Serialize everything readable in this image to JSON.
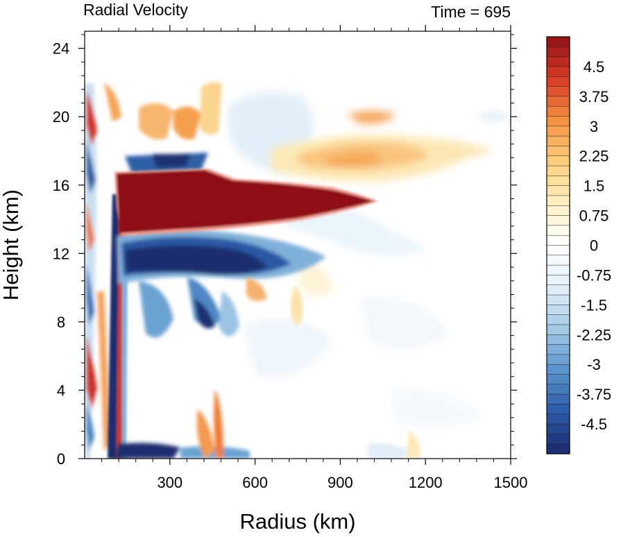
{
  "chart_data": {
    "type": "heatmap",
    "title_left": "Radial Velocity",
    "title_right": "Time = 695",
    "xlabel": "Radius (km)",
    "ylabel": "Height (km)",
    "xlim": [
      0,
      1500
    ],
    "ylim": [
      0,
      25
    ],
    "x_ticks": [
      300,
      600,
      900,
      1200,
      1500
    ],
    "y_ticks": [
      0,
      4,
      8,
      12,
      16,
      20,
      24
    ],
    "colorbar": {
      "range": [
        -5.25,
        5.25
      ],
      "step": 0.25,
      "tick_labels": [
        "4.5",
        "3.75",
        "3",
        "2.25",
        "1.5",
        "0.75",
        "0",
        "-0.75",
        "-1.5",
        "-2.25",
        "-3",
        "-3.75",
        "-4.5"
      ],
      "tick_values": [
        4.5,
        3.75,
        3,
        2.25,
        1.5,
        0.75,
        0,
        -0.75,
        -1.5,
        -2.25,
        -3,
        -3.75,
        -4.5
      ],
      "color_stops": [
        "#1b2a6b",
        "#2a5aa8",
        "#5a94cc",
        "#a3cbe6",
        "#e4f0f8",
        "#ffffff",
        "#fdf1c4",
        "#fbcf7d",
        "#f49240",
        "#d93a26",
        "#8e1116"
      ]
    },
    "features": [
      {
        "feature": "outflow-jet",
        "sign": "positive",
        "r": [
          130,
          1040
        ],
        "z": [
          13,
          17
        ],
        "peak": 5.25
      },
      {
        "feature": "inflow-layer",
        "sign": "negative",
        "r": [
          140,
          580
        ],
        "z": [
          10.5,
          13
        ],
        "peak": -5.25
      },
      {
        "feature": "upper-outflow",
        "sign": "positive",
        "r": [
          650,
          1400
        ],
        "z": [
          16,
          20.5
        ],
        "peak": 2.5
      },
      {
        "feature": "boundary-inflow",
        "sign": "negative",
        "r": [
          130,
          560
        ],
        "z": [
          0,
          1
        ],
        "peak": -4
      }
    ]
  }
}
